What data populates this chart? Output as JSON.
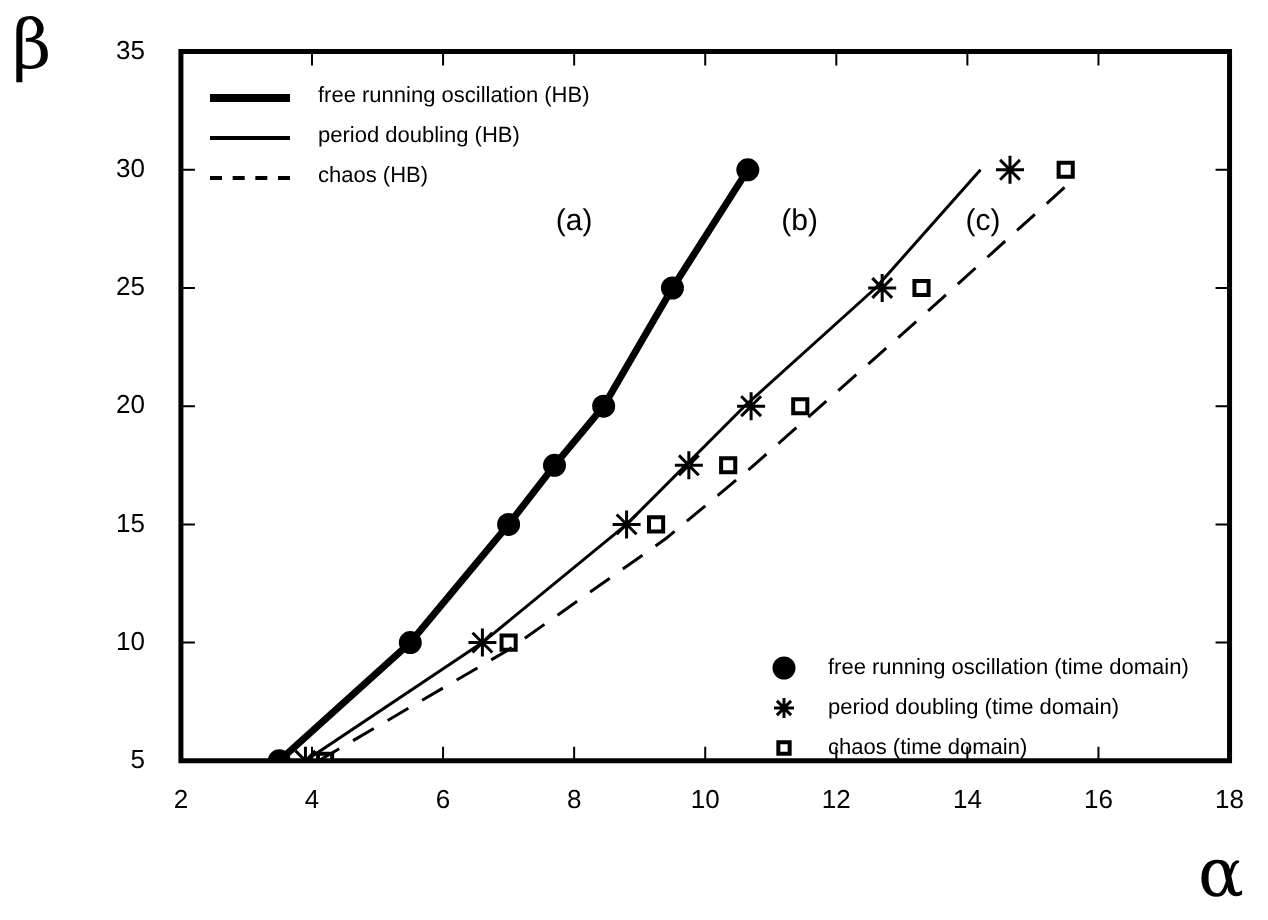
{
  "chart_data": {
    "type": "line",
    "xlabel": "α",
    "ylabel": "β",
    "xlim": [
      2,
      18
    ],
    "xticks": [
      2,
      4,
      6,
      8,
      10,
      12,
      14,
      16,
      18
    ],
    "ylim": [
      5,
      35
    ],
    "yticks": [
      5,
      10,
      15,
      20,
      25,
      30,
      35
    ],
    "grid": false,
    "legend": "left",
    "series": [
      {
        "name": "free running oscillation (HB)",
        "color": "#000000",
        "line_style": "solid",
        "marker": "none",
        "x": [
          3.5,
          5.5,
          7,
          7.7,
          8.45,
          9.5,
          10.65
        ],
        "values": [
          5,
          10,
          15,
          17.5,
          20,
          25,
          30
        ]
      },
      {
        "name": "period doubling (HB)",
        "color": "#000000",
        "line_style": "solid",
        "marker": "none",
        "x": [
          3.9,
          6.6,
          8.8,
          10.6,
          12.6,
          14.2
        ],
        "values": [
          5,
          10,
          15,
          20,
          25,
          30
        ]
      },
      {
        "name": "chaos (HB)",
        "color": "#000000",
        "line_style": "dashed",
        "marker": "none",
        "x": [
          4.1,
          7,
          9.4,
          10.7,
          13.35,
          15.5
        ],
        "values": [
          5,
          9.7,
          14.4,
          17.4,
          23.9,
          29.3
        ]
      },
      {
        "name": "free running oscillation (time domain)",
        "type": "scatter",
        "color": "#000000",
        "marker": "circle",
        "x": [
          3.5,
          5.5,
          7,
          7.7,
          8.45,
          9.5,
          10.65
        ],
        "values": [
          5,
          10,
          15,
          17.5,
          20,
          25,
          30
        ]
      },
      {
        "name": "period doubling (time domain)",
        "type": "scatter",
        "color": "#000000",
        "marker": "cross",
        "x": [
          3.9,
          6.6,
          8.8,
          9.75,
          10.7,
          12.7,
          14.65
        ],
        "values": [
          5,
          10,
          15,
          17.5,
          20,
          25,
          30
        ]
      },
      {
        "name": "chaos (time domain)",
        "type": "scatter",
        "color": "#000000",
        "marker": "square",
        "x": [
          4.2,
          7,
          9.25,
          10.35,
          11.45,
          13.3,
          15.5
        ],
        "values": [
          5,
          10,
          15,
          17.5,
          20,
          25,
          30
        ]
      }
    ],
    "annotations": [
      "(a)",
      "(b)",
      "(c)"
    ]
  }
}
